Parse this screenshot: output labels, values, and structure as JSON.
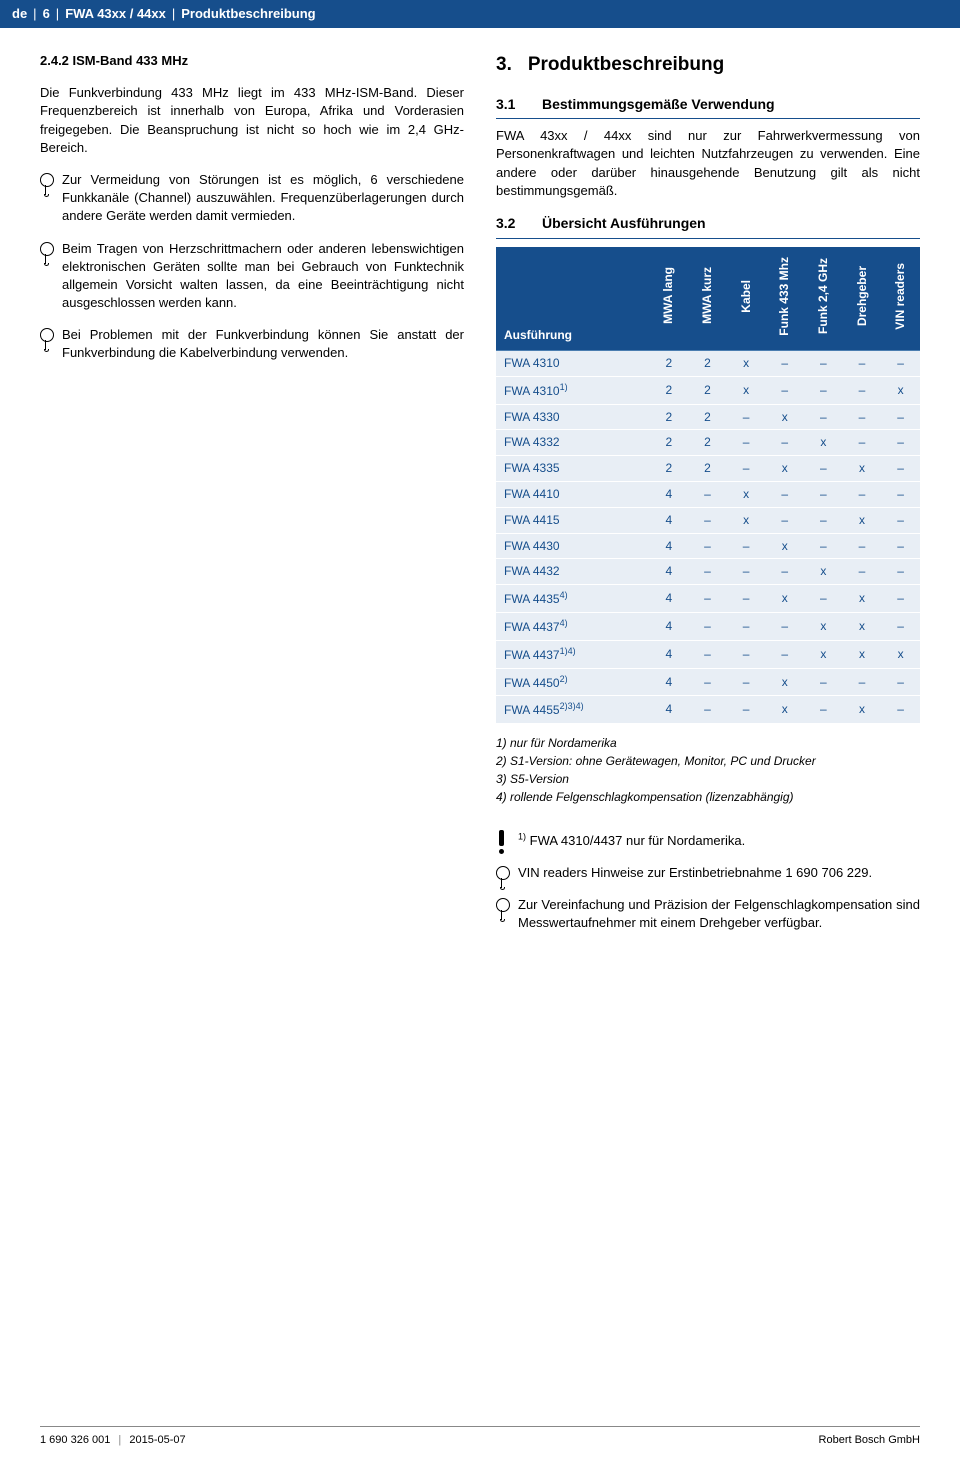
{
  "header": {
    "lang": "de",
    "page": "6",
    "product": "FWA 43xx / 44xx",
    "section": "Produktbeschreibung"
  },
  "left": {
    "h242": "2.4.2   ISM-Band 433 MHz",
    "p1": "Die Funkverbindung 433 MHz liegt im 433 MHz-ISM-Band. Dieser Frequenzbereich ist innerhalb von Europa, Afrika und Vorderasien freigegeben. Die Beanspruchung ist nicht so hoch wie im 2,4 GHz-Bereich.",
    "info1": "Zur Vermeidung von Störungen ist es möglich, 6 verschiedene Funkkanäle (Channel) auszuwählen. Frequenzüberlagerungen durch andere Geräte werden damit vermieden.",
    "info2": "Beim Tragen von Herzschrittmachern oder anderen lebenswichtigen elektronischen Geräten sollte man bei Gebrauch von Funktechnik allgemein Vorsicht walten lassen, da eine Beeinträchtigung nicht ausgeschlossen werden kann.",
    "info3": "Bei Problemen mit der Funkverbindung können Sie anstatt der Funkverbindung die Kabelverbindung verwenden."
  },
  "right": {
    "sec3_num": "3.",
    "sec3_title": "Produktbeschreibung",
    "sec31_num": "3.1",
    "sec31_title": "Bestimmungsgemäße Verwendung",
    "sec31_body": "FWA 43xx / 44xx sind nur zur Fahrwerkvermessung von Personenkraftwagen und leichten Nutzfahrzeugen zu verwenden. Eine andere oder darüber hinausgehende Benutzung gilt als nicht bestimmungsgemäß.",
    "sec32_num": "3.2",
    "sec32_title": "Übersicht Ausführungen",
    "table": {
      "head_exec": "Ausführung",
      "cols": [
        "MWA lang",
        "MWA kurz",
        "Kabel",
        "Funk 433 Mhz",
        "Funk 2,4 GHz",
        "Drehgeber",
        "VIN readers"
      ],
      "rows": [
        {
          "name": "FWA 4310",
          "sup": "",
          "c": [
            "2",
            "2",
            "x",
            "–",
            "–",
            "–",
            "–"
          ]
        },
        {
          "name": "FWA 4310",
          "sup": "1)",
          "c": [
            "2",
            "2",
            "x",
            "–",
            "–",
            "–",
            "x"
          ]
        },
        {
          "name": "FWA 4330",
          "sup": "",
          "c": [
            "2",
            "2",
            "–",
            "x",
            "–",
            "–",
            "–"
          ]
        },
        {
          "name": "FWA 4332",
          "sup": "",
          "c": [
            "2",
            "2",
            "–",
            "–",
            "x",
            "–",
            "–"
          ]
        },
        {
          "name": "FWA 4335",
          "sup": "",
          "c": [
            "2",
            "2",
            "–",
            "x",
            "–",
            "x",
            "–"
          ]
        },
        {
          "name": "FWA 4410",
          "sup": "",
          "c": [
            "4",
            "–",
            "x",
            "–",
            "–",
            "–",
            "–"
          ]
        },
        {
          "name": "FWA 4415",
          "sup": "",
          "c": [
            "4",
            "–",
            "x",
            "–",
            "–",
            "x",
            "–"
          ]
        },
        {
          "name": "FWA 4430",
          "sup": "",
          "c": [
            "4",
            "–",
            "–",
            "x",
            "–",
            "–",
            "–"
          ]
        },
        {
          "name": "FWA 4432",
          "sup": "",
          "c": [
            "4",
            "–",
            "–",
            "–",
            "x",
            "–",
            "–"
          ]
        },
        {
          "name": "FWA 4435",
          "sup": "4)",
          "c": [
            "4",
            "–",
            "–",
            "x",
            "–",
            "x",
            "–"
          ]
        },
        {
          "name": "FWA 4437",
          "sup": "4)",
          "c": [
            "4",
            "–",
            "–",
            "–",
            "x",
            "x",
            "–"
          ]
        },
        {
          "name": "FWA 4437",
          "sup": "1)4)",
          "c": [
            "4",
            "–",
            "–",
            "–",
            "x",
            "x",
            "x"
          ]
        },
        {
          "name": "FWA 4450",
          "sup": "2)",
          "c": [
            "4",
            "–",
            "–",
            "x",
            "–",
            "–",
            "–"
          ]
        },
        {
          "name": "FWA 4455",
          "sup": "2)3)4)",
          "c": [
            "4",
            "–",
            "–",
            "x",
            "–",
            "x",
            "–"
          ]
        }
      ]
    },
    "footnotes": {
      "f1": "1)  nur für Nordamerika",
      "f2": "2)  S1-Version: ohne Gerätewagen, Monitor, PC und Drucker",
      "f3": "3)  S5-Version",
      "f4": "4)  rollende Felgenschlagkompensation (lizenzabhängig)"
    },
    "bang": "FWA 4310/4437 nur für Nordamerika.",
    "info_vin": "VIN readers Hinweise zur Erstinbetriebnahme 1 690 706 229.",
    "info_dreh": "Zur Vereinfachung und Präzision der Felgenschlagkompensation sind Messwertaufnehmer mit einem Drehgeber verfügbar."
  },
  "footer": {
    "left1": "1 690 326 001",
    "left2": "2015-05-07",
    "right": "Robert Bosch GmbH"
  },
  "colors": {
    "brand": "#164e8c",
    "tablecell": "#e8eef5"
  }
}
